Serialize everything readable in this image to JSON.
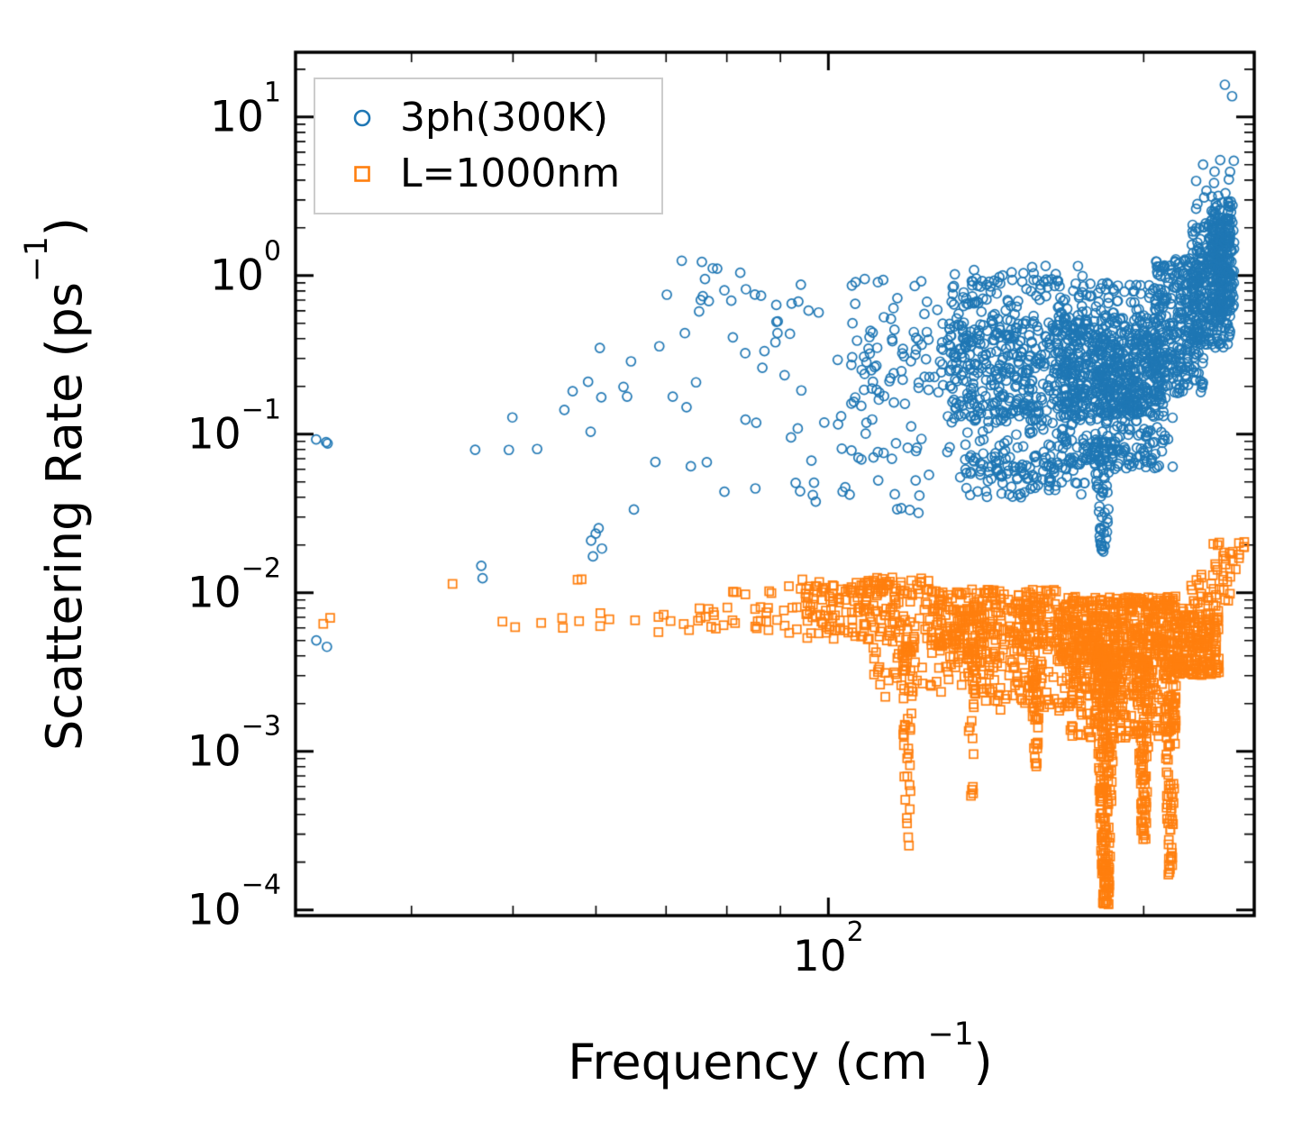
{
  "figure": {
    "background": "#ffffff",
    "axis_color": "#000000",
    "legend_border_color": "#cccccc"
  },
  "chart_data": {
    "type": "scatter",
    "xscale": "log",
    "yscale": "log",
    "grid": false,
    "xlim": [
      31,
      255
    ],
    "ylim": [
      9.2e-05,
      25.6
    ],
    "xlabel": "Frequency (cm⁻¹)",
    "ylabel": "Scattering Rate (ps⁻¹)",
    "xlabel_parts": {
      "prefix": "Frequency (cm",
      "sup": "−1",
      "suffix": ")"
    },
    "ylabel_parts": {
      "prefix": "Scattering Rate (ps",
      "sup": "−1",
      "suffix": ")"
    },
    "xtick_labels": [
      {
        "base": "10",
        "exp": "2",
        "value": 100
      }
    ],
    "ytick_labels": [
      {
        "base": "10",
        "exp": "1",
        "value": 10
      },
      {
        "base": "10",
        "exp": "0",
        "value": 1
      },
      {
        "base": "10",
        "exp": "−1",
        "value": 0.1
      },
      {
        "base": "10",
        "exp": "−2",
        "value": 0.01
      },
      {
        "base": "10",
        "exp": "−3",
        "value": 0.001
      },
      {
        "base": "10",
        "exp": "−4",
        "value": 0.0001
      }
    ],
    "legend": {
      "position": "upper-left",
      "entries": [
        {
          "label": "3ph(300K)",
          "marker": "circle",
          "color": "#1f77b4"
        },
        {
          "label": "L=1000nm",
          "marker": "square",
          "color": "#ff7f0e"
        }
      ]
    },
    "seed": 20240613,
    "series": [
      {
        "name": "3ph(300K)",
        "marker": "circle",
        "color": "#1f77b4",
        "clusters": [
          {
            "t": "box",
            "n": 3,
            "x": [
              32.3,
              33.6
            ],
            "y": [
              0.08,
              0.097
            ]
          },
          {
            "t": "box",
            "n": 2,
            "x": [
              32.4,
              33.4
            ],
            "y": [
              0.0042,
              0.0053
            ]
          },
          {
            "t": "box",
            "n": 1,
            "x": [
              45,
              47
            ],
            "y": [
              0.074,
              0.082
            ]
          },
          {
            "t": "box",
            "n": 2,
            "x": [
              44,
              47
            ],
            "y": [
              0.012,
              0.015
            ]
          },
          {
            "t": "box",
            "n": 2,
            "x": [
              57,
              63
            ],
            "y": [
              0.016,
              0.022
            ]
          },
          {
            "t": "box",
            "n": 3,
            "x": [
              49,
              56
            ],
            "y": [
              0.055,
              0.24
            ]
          },
          {
            "t": "box",
            "n": 8,
            "x": [
              55,
              68
            ],
            "y": [
              0.02,
              0.3
            ]
          },
          {
            "t": "box",
            "n": 5,
            "x": [
              55,
              70
            ],
            "y": [
              0.1,
              0.45
            ]
          },
          {
            "t": "box",
            "n": 18,
            "x": [
              68,
              85
            ],
            "y": [
              0.03,
              0.8
            ]
          },
          {
            "t": "box",
            "n": 8,
            "x": [
              72,
              92
            ],
            "y": [
              0.8,
              1.3
            ]
          },
          {
            "t": "box",
            "n": 30,
            "x": [
              85,
              105
            ],
            "y": [
              0.04,
              1.1
            ]
          },
          {
            "t": "box",
            "n": 12,
            "x": [
              92,
              130
            ],
            "y": [
              0.03,
              0.055
            ]
          },
          {
            "t": "box",
            "n": 60,
            "x": [
              105,
              130
            ],
            "y": [
              0.05,
              1.0
            ]
          },
          {
            "t": "box",
            "n": 40,
            "x": [
              105,
              130
            ],
            "y": [
              0.15,
              0.6
            ]
          },
          {
            "t": "box",
            "n": 250,
            "x": [
              130,
              165
            ],
            "y": [
              0.05,
              0.95
            ]
          },
          {
            "t": "box",
            "n": 200,
            "x": [
              130,
              165
            ],
            "y": [
              0.12,
              0.5
            ]
          },
          {
            "t": "box",
            "n": 30,
            "x": [
              130,
              175
            ],
            "y": [
              0.75,
              1.15
            ]
          },
          {
            "t": "box",
            "n": 350,
            "x": [
              165,
              205
            ],
            "y": [
              0.06,
              0.9
            ]
          },
          {
            "t": "box",
            "n": 450,
            "x": [
              165,
              210
            ],
            "y": [
              0.13,
              0.55
            ]
          },
          {
            "t": "box",
            "n": 90,
            "x": [
              135,
              185
            ],
            "y": [
              0.04,
              0.075
            ]
          },
          {
            "t": "dip",
            "n": 70,
            "cx": 183,
            "w": 0.01,
            "yt": 0.09,
            "yb": 0.018,
            "p": 1.6
          },
          {
            "t": "box",
            "n": 60,
            "x": [
              185,
              215
            ],
            "y": [
              0.06,
              0.2
            ]
          },
          {
            "t": "box",
            "n": 280,
            "x": [
              205,
              228
            ],
            "y": [
              0.18,
              1.3
            ]
          },
          {
            "t": "box",
            "n": 260,
            "x": [
              222,
              242
            ],
            "y": [
              0.35,
              2.2
            ]
          },
          {
            "t": "box",
            "n": 180,
            "x": [
              232,
              244
            ],
            "y": [
              0.6,
              3.2
            ]
          },
          {
            "t": "box",
            "n": 14,
            "x": [
              224,
              242
            ],
            "y": [
              2.2,
              5.5
            ]
          },
          {
            "t": "box",
            "n": 2,
            "x": [
              236,
              243
            ],
            "y": [
              12,
              16
            ]
          },
          {
            "t": "box",
            "n": 1,
            "x": [
              243,
              248
            ],
            "y": [
              4.8,
              5.6
            ]
          }
        ]
      },
      {
        "name": "L=1000nm",
        "marker": "square",
        "color": "#ff7f0e",
        "clusters": [
          {
            "t": "box",
            "n": 2,
            "x": [
              32.4,
              33.5
            ],
            "y": [
              0.006,
              0.0072
            ]
          },
          {
            "t": "box",
            "n": 1,
            "x": [
              42.5,
              44
            ],
            "y": [
              0.0105,
              0.0118
            ]
          },
          {
            "t": "box",
            "n": 6,
            "x": [
              44,
              58
            ],
            "y": [
              0.0058,
              0.0076
            ]
          },
          {
            "t": "box",
            "n": 2,
            "x": [
              56,
              61
            ],
            "y": [
              0.0112,
              0.0125
            ]
          },
          {
            "t": "box",
            "n": 10,
            "x": [
              60,
              75
            ],
            "y": [
              0.0055,
              0.0075
            ]
          },
          {
            "t": "box",
            "n": 30,
            "x": [
              75,
              95
            ],
            "y": [
              0.0055,
              0.0085
            ]
          },
          {
            "t": "box",
            "n": 12,
            "x": [
              78,
              100
            ],
            "y": [
              0.009,
              0.0122
            ]
          },
          {
            "t": "box",
            "n": 150,
            "x": [
              95,
              125
            ],
            "y": [
              0.005,
              0.0115
            ]
          },
          {
            "t": "box",
            "n": 40,
            "x": [
              100,
              125
            ],
            "y": [
              0.0095,
              0.0125
            ]
          },
          {
            "t": "box",
            "n": 70,
            "x": [
              110,
              140
            ],
            "y": [
              0.0022,
              0.005
            ]
          },
          {
            "t": "dip",
            "n": 45,
            "cx": 119,
            "w": 0.006,
            "yt": 0.0045,
            "yb": 0.00022,
            "p": 1.8
          },
          {
            "t": "dip",
            "n": 35,
            "cx": 137,
            "w": 0.006,
            "yt": 0.0045,
            "yb": 0.0005,
            "p": 1.8
          },
          {
            "t": "box",
            "n": 300,
            "x": [
              125,
              165
            ],
            "y": [
              0.0045,
              0.0105
            ]
          },
          {
            "t": "box",
            "n": 120,
            "x": [
              140,
              175
            ],
            "y": [
              0.0018,
              0.0045
            ]
          },
          {
            "t": "dip",
            "n": 35,
            "cx": 158,
            "w": 0.006,
            "yt": 0.0035,
            "yb": 0.00075,
            "p": 1.8
          },
          {
            "t": "box",
            "n": 500,
            "x": [
              165,
              215
            ],
            "y": [
              0.0035,
              0.0095
            ]
          },
          {
            "t": "box",
            "n": 200,
            "x": [
              170,
              215
            ],
            "y": [
              0.0012,
              0.0035
            ]
          },
          {
            "t": "dip",
            "n": 260,
            "cx": 184,
            "w": 0.011,
            "yt": 0.0045,
            "yb": 0.000105,
            "p": 1.3
          },
          {
            "t": "dip",
            "n": 110,
            "cx": 200,
            "w": 0.008,
            "yt": 0.004,
            "yb": 0.00026,
            "p": 1.5
          },
          {
            "t": "dip",
            "n": 90,
            "cx": 212,
            "w": 0.007,
            "yt": 0.0035,
            "yb": 0.00016,
            "p": 1.5
          },
          {
            "t": "box",
            "n": 200,
            "x": [
              215,
              236
            ],
            "y": [
              0.003,
              0.008
            ]
          },
          {
            "t": "box",
            "n": 30,
            "x": [
              222,
              242
            ],
            "y": [
              0.008,
              0.013
            ]
          },
          {
            "t": "box",
            "n": 18,
            "x": [
              233,
              250
            ],
            "y": [
              0.013,
              0.021
            ]
          },
          {
            "t": "box",
            "n": 3,
            "x": [
              246,
              252
            ],
            "y": [
              0.019,
              0.022
            ]
          }
        ]
      }
    ]
  }
}
